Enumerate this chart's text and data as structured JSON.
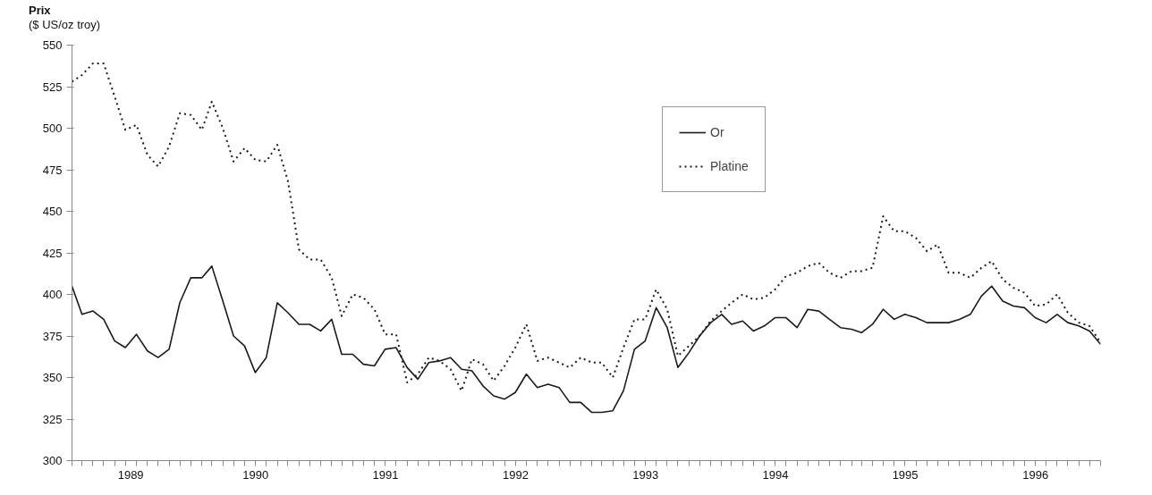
{
  "chart_data": {
    "type": "line",
    "ylabel": "Prix\n($ US/oz troy)",
    "x": [
      "1989-02",
      "1989-03",
      "1989-04",
      "1989-05",
      "1989-06",
      "1989-07",
      "1989-08",
      "1989-09",
      "1989-10",
      "1989-11",
      "1989-12",
      "1990-01",
      "1990-02",
      "1990-03",
      "1990-04",
      "1990-05",
      "1990-06",
      "1990-07",
      "1990-08",
      "1990-09",
      "1990-10",
      "1990-11",
      "1990-12",
      "1991-01",
      "1991-02",
      "1991-03",
      "1991-04",
      "1991-05",
      "1991-06",
      "1991-07",
      "1991-08",
      "1991-09",
      "1991-10",
      "1991-11",
      "1991-12",
      "1992-01",
      "1992-02",
      "1992-03",
      "1992-04",
      "1992-05",
      "1992-06",
      "1992-07",
      "1992-08",
      "1992-09",
      "1992-10",
      "1992-11",
      "1992-12",
      "1993-01",
      "1993-02",
      "1993-03",
      "1993-04",
      "1993-05",
      "1993-06",
      "1993-07",
      "1993-08",
      "1993-09",
      "1993-10",
      "1993-11",
      "1993-12",
      "1994-01",
      "1994-02",
      "1994-03",
      "1994-04",
      "1994-05",
      "1994-06",
      "1994-07",
      "1994-08",
      "1994-09",
      "1994-10",
      "1994-11",
      "1994-12",
      "1995-01",
      "1995-02",
      "1995-03",
      "1995-04",
      "1995-05",
      "1995-06",
      "1995-07",
      "1995-08",
      "1995-09",
      "1995-10",
      "1995-11",
      "1995-12",
      "1996-01",
      "1996-02",
      "1996-03",
      "1996-04",
      "1996-05",
      "1996-06",
      "1996-07",
      "1996-08",
      "1996-09",
      "1996-10",
      "1996-11",
      "1996-12",
      "1997-01"
    ],
    "series": [
      {
        "name": "Or",
        "color": "#1a1a1a",
        "line_style": "solid",
        "values": [
          405,
          388,
          390,
          385,
          372,
          368,
          376,
          366,
          362,
          367,
          395,
          410,
          410,
          417,
          396,
          375,
          369,
          353,
          362,
          395,
          389,
          382,
          382,
          378,
          385,
          364,
          364,
          358,
          357,
          367,
          368,
          356,
          349,
          359,
          360,
          362,
          355,
          354,
          345,
          339,
          337,
          341,
          352,
          344,
          346,
          344,
          335,
          335,
          329,
          329,
          330,
          342,
          367,
          372,
          392,
          380,
          356,
          365,
          375,
          383,
          388,
          382,
          384,
          378,
          381,
          386,
          386,
          380,
          391,
          390,
          385,
          380,
          379,
          377,
          382,
          391,
          385,
          388,
          386,
          383,
          383,
          383,
          385,
          388,
          399,
          405,
          396,
          393,
          392,
          386,
          383,
          388,
          383,
          381,
          378,
          370
        ]
      },
      {
        "name": "Platine",
        "color": "#1a1a1a",
        "line_style": "dotted",
        "values": [
          528,
          532,
          539,
          539,
          519,
          499,
          502,
          484,
          477,
          489,
          509,
          508,
          499,
          516,
          500,
          480,
          488,
          481,
          480,
          490,
          468,
          427,
          421,
          421,
          410,
          387,
          400,
          398,
          391,
          376,
          376,
          347,
          352,
          362,
          360,
          355,
          342,
          361,
          358,
          348,
          357,
          368,
          382,
          360,
          362,
          359,
          356,
          362,
          359,
          359,
          350,
          368,
          385,
          385,
          403,
          391,
          363,
          369,
          375,
          384,
          390,
          395,
          400,
          397,
          398,
          403,
          411,
          413,
          417,
          419,
          413,
          410,
          414,
          414,
          416,
          447,
          438,
          438,
          434,
          426,
          430,
          413,
          413,
          410,
          416,
          420,
          409,
          404,
          401,
          393,
          394,
          400,
          389,
          383,
          381,
          371
        ]
      }
    ],
    "xlim": [
      "1989-02",
      "1997-01"
    ],
    "xticks": [
      {
        "value": "1990-01",
        "label": null
      },
      {
        "value": "1991-01",
        "label": null
      },
      {
        "value": "1992-01",
        "label": null
      },
      {
        "value": "1993-01",
        "label": null
      },
      {
        "value": "1994-01",
        "label": null
      },
      {
        "value": "1995-01",
        "label": null
      },
      {
        "value": "1996-01",
        "label": null
      },
      {
        "value": "1997-01",
        "label": null
      },
      {
        "value": "1989-07-16",
        "label": "1989"
      },
      {
        "value": "1990-07-02",
        "label": "1990"
      },
      {
        "value": "1991-07-02",
        "label": "1991"
      },
      {
        "value": "1992-07-02",
        "label": "1992"
      },
      {
        "value": "1993-07-02",
        "label": "1993"
      },
      {
        "value": "1994-07-02",
        "label": "1994"
      },
      {
        "value": "1995-07-02",
        "label": "1995"
      },
      {
        "value": "1996-07-02",
        "label": "1996"
      }
    ],
    "ylim": [
      300,
      550
    ],
    "yticks": [
      300,
      325,
      350,
      375,
      400,
      425,
      450,
      475,
      500,
      525,
      550
    ],
    "legend": "top",
    "grid": false
  }
}
